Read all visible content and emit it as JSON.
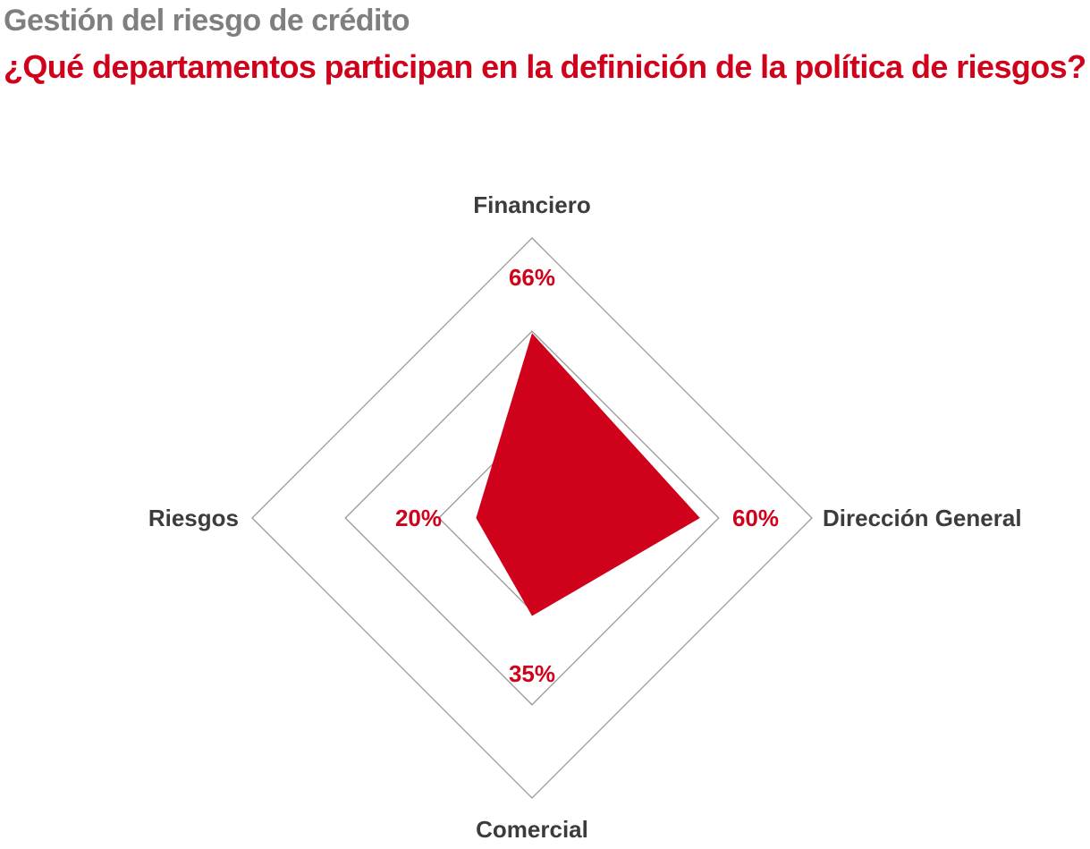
{
  "header": {
    "kicker": "Gestión del riesgo de crédito",
    "title": "¿Qué departamentos participan en la definición de la política de riesgos?"
  },
  "colors": {
    "accent": "#d0021b",
    "kicker": "#7f7f7f",
    "axis_label": "#3c3c3c",
    "grid": "#9a9a9a"
  },
  "chart_data": {
    "type": "radar",
    "title": "¿Qué departamentos participan en la definición de la política de riesgos?",
    "subtitle": "Gestión del riesgo de crédito",
    "unit": "%",
    "range": [
      0,
      100
    ],
    "grid_rings": [
      33.3,
      66.7,
      100
    ],
    "axis_labels": [
      "Financiero",
      "Dirección General",
      "Comercial",
      "Riesgos"
    ],
    "series": [
      {
        "values": [
          66,
          60,
          35,
          20
        ],
        "value_labels": [
          "66%",
          "60%",
          "35%",
          "20%"
        ],
        "color": "#d0021b"
      }
    ],
    "legend": "none",
    "grid": true
  }
}
